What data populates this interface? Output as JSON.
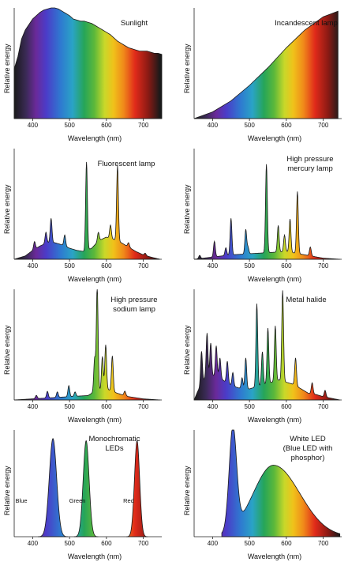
{
  "chart_data": [
    {
      "type": "area",
      "title": "Sunlight",
      "xlabel": "Wavelength (nm)",
      "ylabel": "Relative energy",
      "xlim": [
        350,
        750
      ],
      "xticks": [
        "400",
        "500",
        "600",
        "700"
      ],
      "x": [
        350,
        360,
        370,
        380,
        390,
        400,
        410,
        420,
        430,
        440,
        450,
        460,
        470,
        480,
        490,
        500,
        510,
        520,
        530,
        540,
        550,
        560,
        570,
        580,
        590,
        600,
        610,
        620,
        630,
        640,
        650,
        660,
        670,
        680,
        690,
        700,
        710,
        720,
        730,
        740,
        750
      ],
      "y": [
        0.45,
        0.56,
        0.72,
        0.8,
        0.85,
        0.9,
        0.93,
        0.96,
        0.98,
        0.99,
        1.0,
        1.0,
        0.99,
        0.97,
        0.95,
        0.93,
        0.9,
        0.89,
        0.88,
        0.88,
        0.87,
        0.86,
        0.84,
        0.82,
        0.8,
        0.78,
        0.76,
        0.73,
        0.7,
        0.68,
        0.66,
        0.64,
        0.63,
        0.62,
        0.61,
        0.61,
        0.61,
        0.6,
        0.59,
        0.59,
        0.58
      ]
    },
    {
      "type": "area",
      "title": "Incandescent lamp",
      "xlabel": "Wavelength (nm)",
      "ylabel": "Relative energy",
      "xlim": [
        350,
        750
      ],
      "xticks": [
        "400",
        "500",
        "600",
        "700"
      ],
      "x": [
        350,
        400,
        450,
        500,
        550,
        600,
        650,
        700,
        740
      ],
      "y": [
        0.0,
        0.06,
        0.16,
        0.3,
        0.46,
        0.64,
        0.8,
        0.92,
        0.97
      ]
    },
    {
      "type": "area",
      "title": "Fluorescent lamp",
      "xlabel": "Wavelength (nm)",
      "ylabel": "Relative energy",
      "xlim": [
        350,
        750
      ],
      "xticks": [
        "400",
        "500",
        "600",
        "700"
      ],
      "base": [
        [
          350,
          0.0
        ],
        [
          380,
          0.03
        ],
        [
          400,
          0.08
        ],
        [
          420,
          0.12
        ],
        [
          440,
          0.15
        ],
        [
          460,
          0.15
        ],
        [
          480,
          0.13
        ],
        [
          500,
          0.1
        ],
        [
          520,
          0.08
        ],
        [
          540,
          0.07
        ],
        [
          560,
          0.1
        ],
        [
          580,
          0.17
        ],
        [
          600,
          0.2
        ],
        [
          620,
          0.18
        ],
        [
          640,
          0.15
        ],
        [
          660,
          0.11
        ],
        [
          680,
          0.07
        ],
        [
          700,
          0.04
        ],
        [
          720,
          0.02
        ],
        [
          745,
          0.0
        ]
      ],
      "peaks": [
        [
          405,
          0.07
        ],
        [
          436,
          0.1
        ],
        [
          450,
          0.22
        ],
        [
          487,
          0.1
        ],
        [
          546,
          0.8
        ],
        [
          578,
          0.08
        ],
        [
          611,
          0.12
        ],
        [
          630,
          0.68
        ],
        [
          660,
          0.04
        ],
        [
          705,
          0.02
        ]
      ]
    },
    {
      "type": "area",
      "title": "High pressure\nmercury lamp",
      "xlabel": "Wavelength (nm)",
      "ylabel": "Relative energy",
      "xlim": [
        350,
        750
      ],
      "xticks": [
        "400",
        "500",
        "600",
        "700"
      ],
      "base": [
        [
          350,
          0.0
        ],
        [
          400,
          0.02
        ],
        [
          450,
          0.04
        ],
        [
          500,
          0.05
        ],
        [
          550,
          0.06
        ],
        [
          600,
          0.07
        ],
        [
          650,
          0.04
        ],
        [
          700,
          0.01
        ],
        [
          745,
          0.0
        ]
      ],
      "peaks": [
        [
          365,
          0.03
        ],
        [
          405,
          0.14
        ],
        [
          436,
          0.07
        ],
        [
          450,
          0.33
        ],
        [
          490,
          0.22
        ],
        [
          496,
          0.06
        ],
        [
          546,
          0.8
        ],
        [
          578,
          0.24
        ],
        [
          595,
          0.15
        ],
        [
          610,
          0.3
        ],
        [
          630,
          0.56
        ],
        [
          665,
          0.08
        ]
      ]
    },
    {
      "type": "area",
      "title": "High pressure\nsodium lamp",
      "xlabel": "Wavelength (nm)",
      "ylabel": "Relative energy",
      "xlim": [
        350,
        750
      ],
      "xticks": [
        "400",
        "500",
        "600",
        "700"
      ],
      "base": [
        [
          350,
          0.0
        ],
        [
          400,
          0.01
        ],
        [
          450,
          0.02
        ],
        [
          500,
          0.03
        ],
        [
          550,
          0.04
        ],
        [
          570,
          0.08
        ],
        [
          600,
          0.1
        ],
        [
          630,
          0.06
        ],
        [
          660,
          0.03
        ],
        [
          700,
          0.01
        ],
        [
          745,
          0.0
        ]
      ],
      "peaks": [
        [
          410,
          0.03
        ],
        [
          440,
          0.06
        ],
        [
          467,
          0.05
        ],
        [
          498,
          0.1
        ],
        [
          515,
          0.04
        ],
        [
          568,
          0.3
        ],
        [
          575,
          0.95
        ],
        [
          589,
          0.3
        ],
        [
          598,
          0.4
        ],
        [
          616,
          0.32
        ],
        [
          650,
          0.04
        ]
      ]
    },
    {
      "type": "area",
      "title": "Metal halide",
      "xlabel": "Wavelength (nm)",
      "ylabel": "Relative energy",
      "xlim": [
        350,
        750
      ],
      "xticks": [
        "400",
        "500",
        "600",
        "700"
      ],
      "base": [
        [
          350,
          0.0
        ],
        [
          360,
          0.08
        ],
        [
          380,
          0.2
        ],
        [
          400,
          0.22
        ],
        [
          420,
          0.2
        ],
        [
          440,
          0.15
        ],
        [
          460,
          0.12
        ],
        [
          480,
          0.1
        ],
        [
          500,
          0.1
        ],
        [
          520,
          0.12
        ],
        [
          540,
          0.14
        ],
        [
          560,
          0.16
        ],
        [
          580,
          0.18
        ],
        [
          600,
          0.16
        ],
        [
          620,
          0.14
        ],
        [
          640,
          0.1
        ],
        [
          660,
          0.06
        ],
        [
          680,
          0.05
        ],
        [
          700,
          0.03
        ],
        [
          745,
          0.0
        ]
      ],
      "peaks": [
        [
          370,
          0.3
        ],
        [
          385,
          0.4
        ],
        [
          395,
          0.3
        ],
        [
          410,
          0.28
        ],
        [
          420,
          0.18
        ],
        [
          440,
          0.2
        ],
        [
          455,
          0.12
        ],
        [
          480,
          0.1
        ],
        [
          490,
          0.28
        ],
        [
          520,
          0.75
        ],
        [
          535,
          0.3
        ],
        [
          550,
          0.5
        ],
        [
          570,
          0.5
        ],
        [
          590,
          0.82
        ],
        [
          625,
          0.25
        ],
        [
          670,
          0.1
        ],
        [
          705,
          0.06
        ]
      ]
    },
    {
      "type": "area",
      "title": "Monochromatic\nLEDs",
      "xlabel": "Wavelength (nm)",
      "ylabel": "Relative energy",
      "xlim": [
        350,
        750
      ],
      "xticks": [
        "400",
        "500",
        "600",
        "700"
      ],
      "series": [
        {
          "name": "Blue",
          "peak": 455,
          "width": 10,
          "value": 0.92
        },
        {
          "name": "Green",
          "peak": 545,
          "width": 8,
          "value": 0.9
        },
        {
          "name": "Red",
          "peak": 683,
          "width": 7,
          "value": 0.9
        }
      ]
    },
    {
      "type": "area",
      "title": "White LED\n(Blue LED with\nphosphor)",
      "xlabel": "Wavelength (nm)",
      "ylabel": "Relative energy",
      "xlim": [
        350,
        750
      ],
      "xticks": [
        "400",
        "500",
        "600",
        "700"
      ],
      "components": [
        [
          455,
          10,
          0.95
        ],
        [
          565,
          55,
          0.67
        ]
      ]
    }
  ]
}
